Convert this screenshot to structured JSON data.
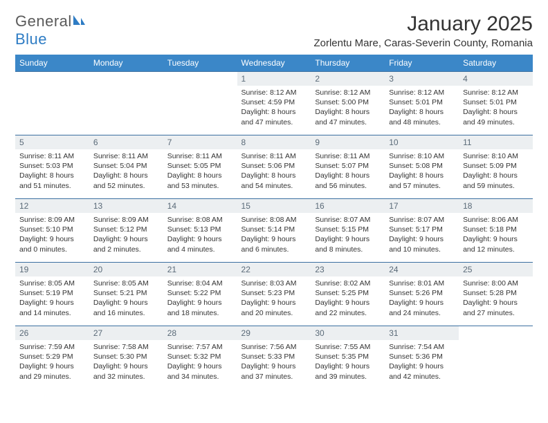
{
  "logo": {
    "text1": "General",
    "text2": "Blue"
  },
  "header": {
    "month_title": "January 2025",
    "location": "Zorlentu Mare, Caras-Severin County, Romania"
  },
  "colors": {
    "header_bg": "#3b87c8",
    "header_text": "#ffffff",
    "daynum_bg": "#eceff1",
    "daynum_text": "#5a6a78",
    "border": "#3b6fa0",
    "body_text": "#333333",
    "logo_gray": "#5a5a5a",
    "logo_blue": "#2e7cc4",
    "page_bg": "#ffffff"
  },
  "typography": {
    "month_title_size": 30,
    "location_size": 15,
    "weekday_size": 12,
    "daynum_size": 12,
    "body_size": 10.5
  },
  "weekdays": [
    "Sunday",
    "Monday",
    "Tuesday",
    "Wednesday",
    "Thursday",
    "Friday",
    "Saturday"
  ],
  "weeks": [
    [
      null,
      null,
      null,
      {
        "n": "1",
        "sr": "8:12 AM",
        "ss": "4:59 PM",
        "dl": "8 hours and 47 minutes."
      },
      {
        "n": "2",
        "sr": "8:12 AM",
        "ss": "5:00 PM",
        "dl": "8 hours and 47 minutes."
      },
      {
        "n": "3",
        "sr": "8:12 AM",
        "ss": "5:01 PM",
        "dl": "8 hours and 48 minutes."
      },
      {
        "n": "4",
        "sr": "8:12 AM",
        "ss": "5:01 PM",
        "dl": "8 hours and 49 minutes."
      }
    ],
    [
      {
        "n": "5",
        "sr": "8:11 AM",
        "ss": "5:03 PM",
        "dl": "8 hours and 51 minutes."
      },
      {
        "n": "6",
        "sr": "8:11 AM",
        "ss": "5:04 PM",
        "dl": "8 hours and 52 minutes."
      },
      {
        "n": "7",
        "sr": "8:11 AM",
        "ss": "5:05 PM",
        "dl": "8 hours and 53 minutes."
      },
      {
        "n": "8",
        "sr": "8:11 AM",
        "ss": "5:06 PM",
        "dl": "8 hours and 54 minutes."
      },
      {
        "n": "9",
        "sr": "8:11 AM",
        "ss": "5:07 PM",
        "dl": "8 hours and 56 minutes."
      },
      {
        "n": "10",
        "sr": "8:10 AM",
        "ss": "5:08 PM",
        "dl": "8 hours and 57 minutes."
      },
      {
        "n": "11",
        "sr": "8:10 AM",
        "ss": "5:09 PM",
        "dl": "8 hours and 59 minutes."
      }
    ],
    [
      {
        "n": "12",
        "sr": "8:09 AM",
        "ss": "5:10 PM",
        "dl": "9 hours and 0 minutes."
      },
      {
        "n": "13",
        "sr": "8:09 AM",
        "ss": "5:12 PM",
        "dl": "9 hours and 2 minutes."
      },
      {
        "n": "14",
        "sr": "8:08 AM",
        "ss": "5:13 PM",
        "dl": "9 hours and 4 minutes."
      },
      {
        "n": "15",
        "sr": "8:08 AM",
        "ss": "5:14 PM",
        "dl": "9 hours and 6 minutes."
      },
      {
        "n": "16",
        "sr": "8:07 AM",
        "ss": "5:15 PM",
        "dl": "9 hours and 8 minutes."
      },
      {
        "n": "17",
        "sr": "8:07 AM",
        "ss": "5:17 PM",
        "dl": "9 hours and 10 minutes."
      },
      {
        "n": "18",
        "sr": "8:06 AM",
        "ss": "5:18 PM",
        "dl": "9 hours and 12 minutes."
      }
    ],
    [
      {
        "n": "19",
        "sr": "8:05 AM",
        "ss": "5:19 PM",
        "dl": "9 hours and 14 minutes."
      },
      {
        "n": "20",
        "sr": "8:05 AM",
        "ss": "5:21 PM",
        "dl": "9 hours and 16 minutes."
      },
      {
        "n": "21",
        "sr": "8:04 AM",
        "ss": "5:22 PM",
        "dl": "9 hours and 18 minutes."
      },
      {
        "n": "22",
        "sr": "8:03 AM",
        "ss": "5:23 PM",
        "dl": "9 hours and 20 minutes."
      },
      {
        "n": "23",
        "sr": "8:02 AM",
        "ss": "5:25 PM",
        "dl": "9 hours and 22 minutes."
      },
      {
        "n": "24",
        "sr": "8:01 AM",
        "ss": "5:26 PM",
        "dl": "9 hours and 24 minutes."
      },
      {
        "n": "25",
        "sr": "8:00 AM",
        "ss": "5:28 PM",
        "dl": "9 hours and 27 minutes."
      }
    ],
    [
      {
        "n": "26",
        "sr": "7:59 AM",
        "ss": "5:29 PM",
        "dl": "9 hours and 29 minutes."
      },
      {
        "n": "27",
        "sr": "7:58 AM",
        "ss": "5:30 PM",
        "dl": "9 hours and 32 minutes."
      },
      {
        "n": "28",
        "sr": "7:57 AM",
        "ss": "5:32 PM",
        "dl": "9 hours and 34 minutes."
      },
      {
        "n": "29",
        "sr": "7:56 AM",
        "ss": "5:33 PM",
        "dl": "9 hours and 37 minutes."
      },
      {
        "n": "30",
        "sr": "7:55 AM",
        "ss": "5:35 PM",
        "dl": "9 hours and 39 minutes."
      },
      {
        "n": "31",
        "sr": "7:54 AM",
        "ss": "5:36 PM",
        "dl": "9 hours and 42 minutes."
      },
      null
    ]
  ],
  "labels": {
    "sunrise": "Sunrise:",
    "sunset": "Sunset:",
    "daylight": "Daylight:"
  }
}
